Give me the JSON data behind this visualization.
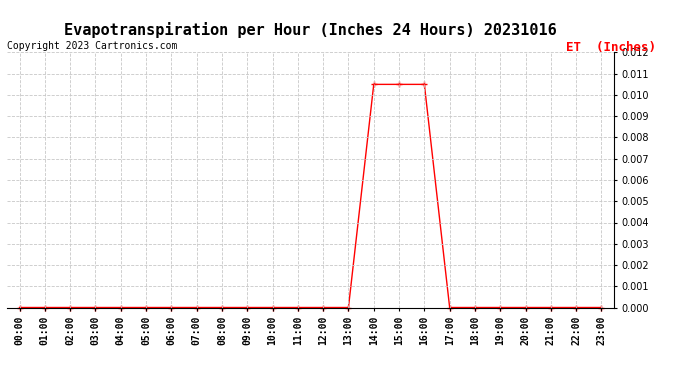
{
  "title": "Evapotranspiration per Hour (Inches 24 Hours) 20231016",
  "copyright": "Copyright 2023 Cartronics.com",
  "legend_label": "ET  (Inches)",
  "hours": [
    "00:00",
    "01:00",
    "02:00",
    "03:00",
    "04:00",
    "05:00",
    "06:00",
    "07:00",
    "08:00",
    "09:00",
    "10:00",
    "11:00",
    "12:00",
    "13:00",
    "14:00",
    "15:00",
    "16:00",
    "17:00",
    "18:00",
    "19:00",
    "20:00",
    "21:00",
    "22:00",
    "23:00"
  ],
  "et_values": [
    0.0,
    0.0,
    0.0,
    0.0,
    0.0,
    0.0,
    0.0,
    0.0,
    0.0,
    0.0,
    0.0,
    0.0,
    0.0,
    0.0,
    0.0105,
    0.0105,
    0.0105,
    0.0,
    0.0,
    0.0,
    0.0,
    0.0,
    0.0,
    0.0
  ],
  "line_color": "#ff0000",
  "marker": "+",
  "marker_size": 4,
  "marker_linewidth": 1.0,
  "ylim": [
    0.0,
    0.012
  ],
  "ytick_step": 0.001,
  "grid_color": "#c8c8c8",
  "grid_linestyle": "--",
  "background_color": "#ffffff",
  "title_fontsize": 11,
  "tick_fontsize": 7,
  "legend_fontsize": 9,
  "copyright_fontsize": 7,
  "copyright_color": "#000000",
  "legend_color": "#ff0000",
  "line_width": 1.0
}
